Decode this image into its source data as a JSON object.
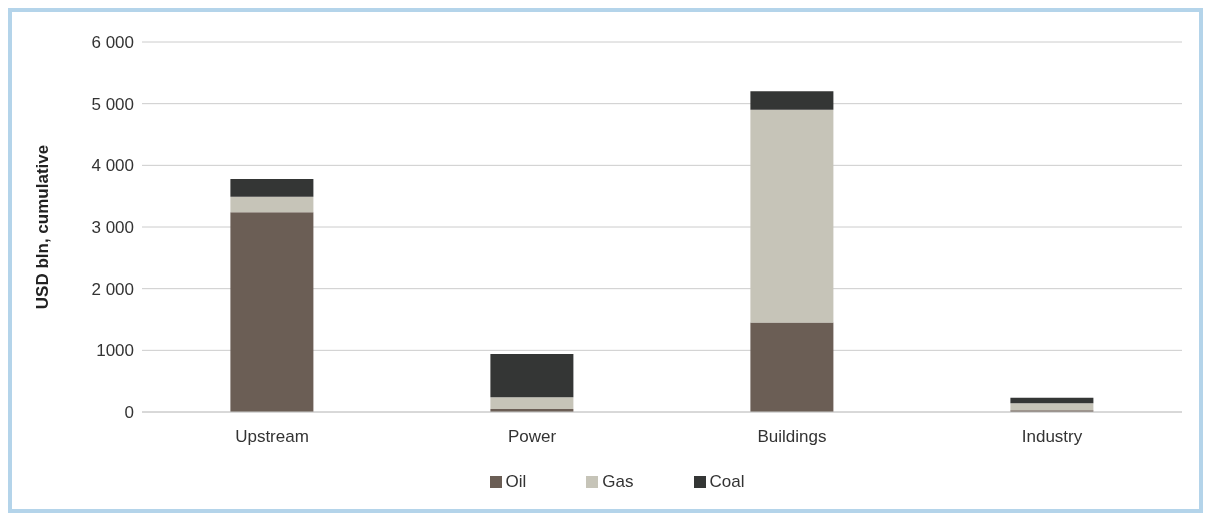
{
  "chart_data": {
    "type": "bar",
    "stacked": true,
    "ylabel": "USD bln, cumulative",
    "categories": [
      "Upstream",
      "Power",
      "Buildings",
      "Industry"
    ],
    "series": [
      {
        "name": "Oil",
        "color": "#6b5e55",
        "values": [
          3240,
          50,
          1450,
          30
        ]
      },
      {
        "name": "Gas",
        "color": "#c6c4b8",
        "values": [
          250,
          190,
          3450,
          110
        ]
      },
      {
        "name": "Coal",
        "color": "#343635",
        "values": [
          290,
          700,
          300,
          90
        ]
      }
    ],
    "ylim": [
      0,
      6000
    ],
    "yticks": [
      0,
      {
        "value": 1000,
        "label": "1000"
      },
      {
        "value": 2000,
        "label": "2 000"
      },
      {
        "value": 3000,
        "label": "3 000"
      },
      {
        "value": 4000,
        "label": "4 000"
      },
      {
        "value": 5000,
        "label": "5 000"
      },
      {
        "value": 6000,
        "label": "6 000"
      }
    ],
    "grid": "y",
    "legend": "bottom"
  }
}
